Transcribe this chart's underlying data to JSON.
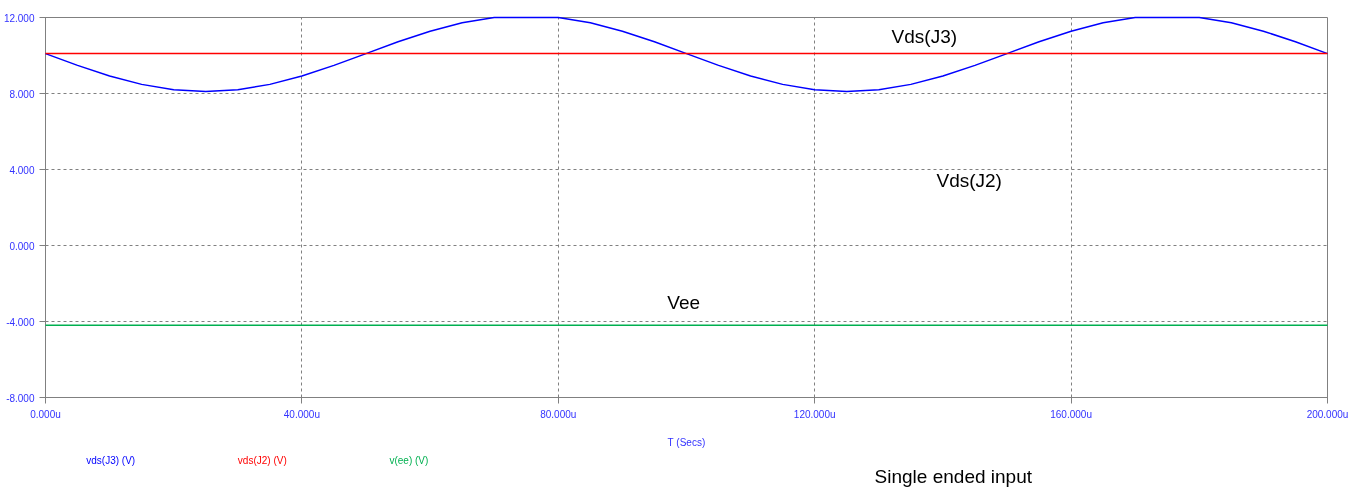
{
  "chart_data": {
    "type": "line",
    "xlabel": "T (Secs)",
    "x": [
      0,
      5,
      10,
      15,
      20,
      25,
      30,
      35,
      40,
      45,
      50,
      55,
      60,
      65,
      70,
      75,
      80,
      85,
      90,
      95,
      100,
      105,
      110,
      115,
      120,
      125,
      130,
      135,
      140,
      145,
      150,
      155,
      160,
      165,
      170,
      175,
      180,
      185,
      190,
      195,
      200
    ],
    "series": [
      {
        "name": "vds(J3) (V)",
        "color": "#0000ff",
        "values": [
          10.1,
          9.48,
          8.92,
          8.48,
          8.2,
          8.1,
          8.2,
          8.48,
          8.92,
          9.48,
          10.1,
          10.72,
          11.28,
          11.72,
          12.0,
          12.0,
          12.0,
          11.72,
          11.28,
          10.72,
          10.1,
          9.48,
          8.92,
          8.48,
          8.2,
          8.1,
          8.2,
          8.48,
          8.92,
          9.48,
          10.1,
          10.72,
          11.28,
          11.72,
          12.0,
          12.0,
          12.0,
          11.72,
          11.28,
          10.72,
          10.1
        ]
      },
      {
        "name": "vds(J2) (V)",
        "color": "#ff0000",
        "values": [
          10.1,
          10.1,
          10.1,
          10.1,
          10.1,
          10.1,
          10.1,
          10.1,
          10.1,
          10.1,
          10.1,
          10.1,
          10.1,
          10.1,
          10.1,
          10.1,
          10.1,
          10.1,
          10.1,
          10.1,
          10.1,
          10.1,
          10.1,
          10.1,
          10.1,
          10.1,
          10.1,
          10.1,
          10.1,
          10.1,
          10.1,
          10.1,
          10.1,
          10.1,
          10.1,
          10.1,
          10.1,
          10.1,
          10.1,
          10.1,
          10.1
        ]
      },
      {
        "name": "v(ee) (V)",
        "color": "#00b050",
        "values": [
          -4.2,
          -4.2,
          -4.2,
          -4.2,
          -4.2,
          -4.2,
          -4.2,
          -4.2,
          -4.2,
          -4.2,
          -4.2,
          -4.2,
          -4.2,
          -4.2,
          -4.2,
          -4.2,
          -4.2,
          -4.2,
          -4.2,
          -4.2,
          -4.2,
          -4.2,
          -4.2,
          -4.2,
          -4.2,
          -4.2,
          -4.2,
          -4.2,
          -4.2,
          -4.2,
          -4.2,
          -4.2,
          -4.2,
          -4.2,
          -4.2,
          -4.2,
          -4.2,
          -4.2,
          -4.2,
          -4.2,
          -4.2
        ]
      }
    ],
    "xlim": [
      0,
      200
    ],
    "xticks": [
      {
        "value": 0,
        "label": "0.000u"
      },
      {
        "value": 40,
        "label": "40.000u"
      },
      {
        "value": 80,
        "label": "80.000u"
      },
      {
        "value": 120,
        "label": "120.000u"
      },
      {
        "value": 160,
        "label": "160.000u"
      },
      {
        "value": 200,
        "label": "200.000u"
      }
    ],
    "ylim": [
      -8,
      12
    ],
    "yticks": [
      {
        "value": -8,
        "label": "-8.000"
      },
      {
        "value": -4,
        "label": "-4.000"
      },
      {
        "value": 0,
        "label": "0.000"
      },
      {
        "value": 4,
        "label": "4.000"
      },
      {
        "value": 8,
        "label": "8.000"
      },
      {
        "value": 12,
        "label": "12.000"
      }
    ],
    "grid": true,
    "marker": "none",
    "line_style": "solid",
    "annotations": [
      "Vds(J3)",
      "Vds(J2)",
      "Vee",
      "Single ended input"
    ]
  }
}
